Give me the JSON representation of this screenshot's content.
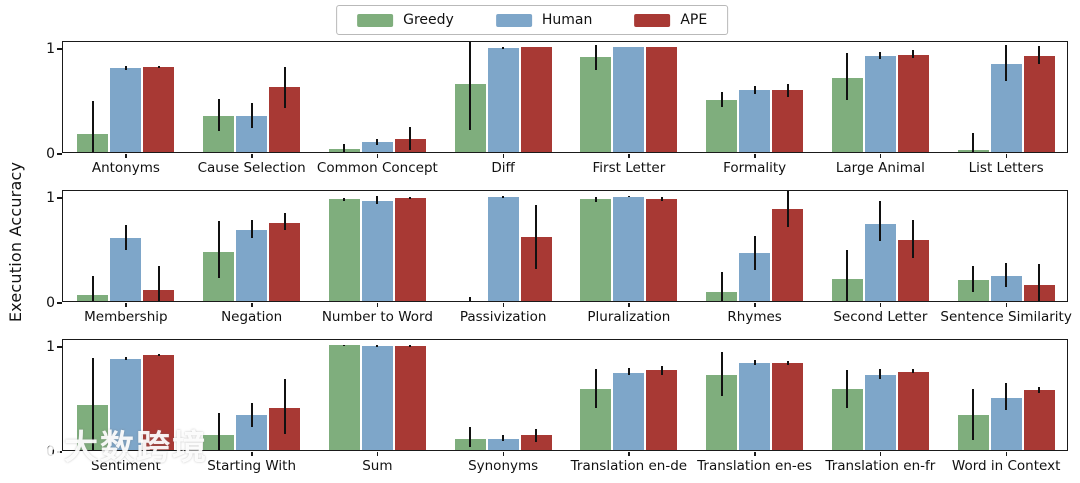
{
  "watermark": {
    "logo": "100",
    "text": "大数跨境"
  },
  "chart_data": {
    "type": "bar",
    "title": "",
    "ylabel": "Execution Accuracy",
    "ylim": [
      0,
      1.07
    ],
    "yticks": [
      0,
      1
    ],
    "grid": false,
    "legend_position": "top-center",
    "error_bars": true,
    "legend": [
      {
        "label": "Greedy",
        "color": "#7fae7d"
      },
      {
        "label": "Human",
        "color": "#7ea6c9"
      },
      {
        "label": "APE",
        "color": "#a83934"
      }
    ],
    "rows": [
      {
        "categories": [
          "Antonyms",
          "Cause Selection",
          "Common Concept",
          "Diff",
          "First Letter",
          "Formality",
          "Large Animal",
          "List Letters"
        ],
        "series": [
          {
            "name": "Greedy",
            "values": [
              0.17,
              0.34,
              0.03,
              0.65,
              0.91,
              0.5,
              0.71,
              0.02
            ],
            "err_lo": [
              0.0,
              0.2,
              0.0,
              0.21,
              0.78,
              0.43,
              0.5,
              0.0
            ],
            "err_hi": [
              0.49,
              0.51,
              0.08,
              1.07,
              1.02,
              0.57,
              0.95,
              0.18
            ]
          },
          {
            "name": "Human",
            "values": [
              0.8,
              0.34,
              0.1,
              0.99,
              1.0,
              0.59,
              0.92,
              0.84
            ],
            "err_lo": [
              0.78,
              0.23,
              0.07,
              0.98,
              1.0,
              0.55,
              0.89,
              0.68
            ],
            "err_hi": [
              0.82,
              0.47,
              0.12,
              1.0,
              1.0,
              0.63,
              0.96,
              1.02
            ]
          },
          {
            "name": "APE",
            "values": [
              0.81,
              0.62,
              0.12,
              1.0,
              1.0,
              0.59,
              0.93,
              0.92
            ],
            "err_lo": [
              0.8,
              0.42,
              0.02,
              1.0,
              1.0,
              0.53,
              0.9,
              0.84
            ],
            "err_hi": [
              0.82,
              0.81,
              0.24,
              1.0,
              1.0,
              0.65,
              0.97,
              1.01
            ]
          }
        ]
      },
      {
        "categories": [
          "Membership",
          "Negation",
          "Number to Word",
          "Passivization",
          "Pluralization",
          "Rhymes",
          "Second Letter",
          "Sentence Similarity"
        ],
        "series": [
          {
            "name": "Greedy",
            "values": [
              0.06,
              0.47,
              0.97,
              0.0,
              0.97,
              0.09,
              0.21,
              0.2
            ],
            "err_lo": [
              0.0,
              0.22,
              0.96,
              0.0,
              0.95,
              0.0,
              0.0,
              0.09
            ],
            "err_hi": [
              0.24,
              0.76,
              0.98,
              0.04,
              0.99,
              0.28,
              0.49,
              0.33
            ]
          },
          {
            "name": "Human",
            "values": [
              0.6,
              0.68,
              0.96,
              0.99,
              0.99,
              0.46,
              0.74,
              0.24
            ],
            "err_lo": [
              0.49,
              0.6,
              0.93,
              0.98,
              0.99,
              0.3,
              0.57,
              0.13
            ],
            "err_hi": [
              0.73,
              0.77,
              1.0,
              1.0,
              1.0,
              0.62,
              0.96,
              0.36
            ]
          },
          {
            "name": "APE",
            "values": [
              0.11,
              0.75,
              0.98,
              0.61,
              0.97,
              0.88,
              0.58,
              0.15
            ],
            "err_lo": [
              0.0,
              0.68,
              0.97,
              0.31,
              0.96,
              0.71,
              0.41,
              0.0
            ],
            "err_hi": [
              0.33,
              0.84,
              0.99,
              0.92,
              0.99,
              1.05,
              0.77,
              0.35
            ]
          }
        ]
      },
      {
        "categories": [
          "Sentiment",
          "Starting With",
          "Sum",
          "Synonyms",
          "Translation en-de",
          "Translation en-es",
          "Translation en-fr",
          "Word in Context"
        ],
        "series": [
          {
            "name": "Greedy",
            "values": [
              0.43,
              0.14,
              1.0,
              0.11,
              0.58,
              0.72,
              0.58,
              0.33
            ],
            "err_lo": [
              0.0,
              0.0,
              0.99,
              0.03,
              0.4,
              0.52,
              0.4,
              0.1
            ],
            "err_hi": [
              0.88,
              0.35,
              1.0,
              0.22,
              0.77,
              0.94,
              0.76,
              0.58
            ]
          },
          {
            "name": "Human",
            "values": [
              0.87,
              0.33,
              0.99,
              0.11,
              0.74,
              0.83,
              0.72,
              0.5
            ],
            "err_lo": [
              0.86,
              0.22,
              0.98,
              0.09,
              0.72,
              0.81,
              0.68,
              0.38
            ],
            "err_hi": [
              0.89,
              0.45,
              1.0,
              0.14,
              0.78,
              0.86,
              0.77,
              0.64
            ]
          },
          {
            "name": "APE",
            "values": [
              0.91,
              0.4,
              0.99,
              0.14,
              0.76,
              0.83,
              0.75,
              0.57
            ],
            "err_lo": [
              0.9,
              0.15,
              0.98,
              0.08,
              0.72,
              0.81,
              0.74,
              0.54
            ],
            "err_hi": [
              0.92,
              0.68,
              1.0,
              0.2,
              0.8,
              0.85,
              0.77,
              0.6
            ]
          }
        ]
      }
    ]
  }
}
